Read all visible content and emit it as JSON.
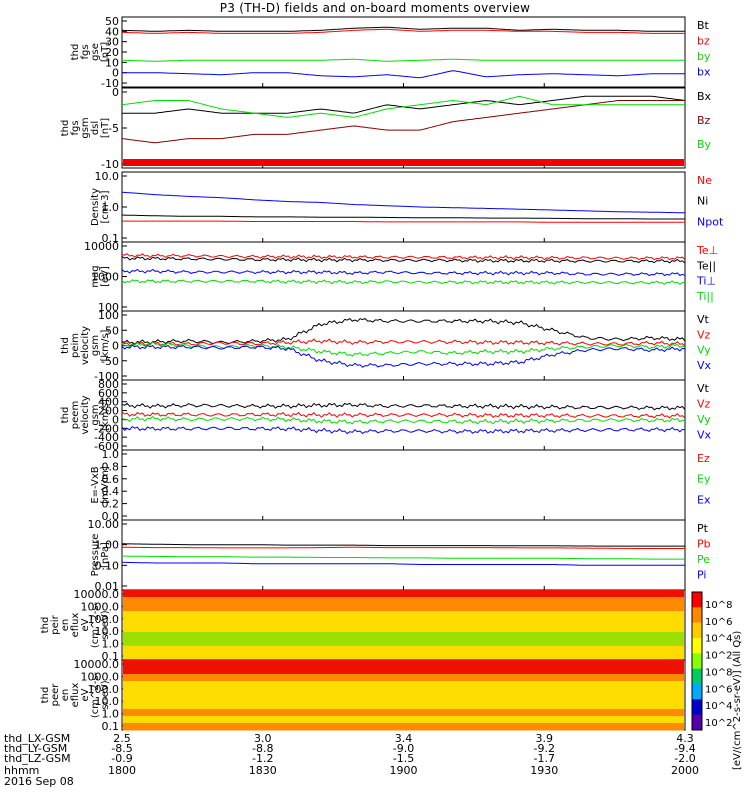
{
  "title": "P3 (TH-D) fields and on-board moments overview",
  "chart_data": [
    {
      "type": "line",
      "panel": 1,
      "ylabel": [
        "thd",
        "fgs",
        "gse",
        "[nT]"
      ],
      "yticks": [
        "50",
        "40",
        "30",
        "20",
        "10",
        "0",
        "-10"
      ],
      "ylim": [
        -10,
        50
      ],
      "series": [
        {
          "name": "Bt",
          "color": "#000000",
          "values": [
            41,
            40,
            41,
            40,
            40,
            40,
            41,
            43,
            44,
            42,
            43,
            43,
            41,
            42,
            41,
            41,
            40,
            40
          ]
        },
        {
          "name": "bz",
          "color": "#ff0000",
          "values": [
            39,
            38,
            39,
            38,
            38,
            38,
            39,
            41,
            42,
            40,
            41,
            41,
            40,
            40,
            39,
            39,
            38,
            38
          ]
        },
        {
          "name": "by",
          "color": "#00dd00",
          "values": [
            12,
            11,
            12,
            12,
            12,
            12,
            12,
            13,
            11,
            12,
            13,
            12,
            12,
            12,
            12,
            12,
            12,
            12
          ]
        },
        {
          "name": "bx",
          "color": "#0000ff",
          "values": [
            0,
            0,
            -1,
            -2,
            0,
            0,
            -3,
            -4,
            -2,
            -5,
            2,
            -4,
            -2,
            -1,
            -2,
            -3,
            -1,
            -1
          ]
        }
      ]
    },
    {
      "type": "line",
      "panel": 2,
      "ylabel": [
        "thd",
        "fgs",
        "gsm",
        "dsl",
        "[nT]"
      ],
      "yticks": [
        "0",
        "-5",
        "-10"
      ],
      "ylim": [
        -14,
        3
      ],
      "series": [
        {
          "name": "Bx",
          "color": "#000000",
          "values": [
            -2,
            -2,
            -1,
            -2,
            -2,
            -2,
            -1,
            -2,
            0,
            -1,
            0,
            1,
            0,
            1,
            2,
            2,
            2,
            1
          ]
        },
        {
          "name": "Bz",
          "color": "#880000",
          "values": [
            -8,
            -9,
            -8,
            -8,
            -7,
            -7,
            -6,
            -5,
            -6,
            -6,
            -4,
            -3,
            -2,
            -1,
            0,
            1,
            1,
            1
          ]
        },
        {
          "name": "By",
          "color": "#00dd00",
          "values": [
            0,
            1,
            1,
            -1,
            -2,
            -3,
            -2,
            -3,
            -1,
            0,
            1,
            0,
            2,
            0,
            0,
            0,
            0,
            0
          ]
        }
      ]
    },
    {
      "type": "line",
      "panel": 3,
      "ylabel": [
        "Density",
        "[cm-3]"
      ],
      "yticks": [
        "10.0",
        "1.0",
        "0.1"
      ],
      "ylim": [
        0.1,
        10
      ],
      "scale": "log",
      "series": [
        {
          "name": "Ne",
          "color": "#ff0000",
          "values": [
            0.35,
            0.35,
            0.35,
            0.35,
            0.34,
            0.34,
            0.34,
            0.34,
            0.33,
            0.33,
            0.33,
            0.33,
            0.33,
            0.32,
            0.32,
            0.32,
            0.32,
            0.32
          ]
        },
        {
          "name": "Ni",
          "color": "#000000",
          "values": [
            0.55,
            0.52,
            0.5,
            0.5,
            0.48,
            0.48,
            0.47,
            0.47,
            0.46,
            0.45,
            0.45,
            0.44,
            0.44,
            0.43,
            0.42,
            0.42,
            0.41,
            0.41
          ]
        },
        {
          "name": "Npot",
          "color": "#0000ff",
          "values": [
            3.0,
            2.5,
            2.2,
            2.0,
            1.7,
            1.5,
            1.4,
            1.2,
            1.1,
            1.0,
            0.95,
            0.9,
            0.85,
            0.8,
            0.75,
            0.7,
            0.68,
            0.65
          ]
        }
      ]
    },
    {
      "type": "line",
      "panel": 4,
      "ylabel": [
        "mag",
        "[eV]"
      ],
      "yticks": [
        "10000",
        "1000",
        "100"
      ],
      "ylim": [
        100,
        10000
      ],
      "scale": "log",
      "series": [
        {
          "name": "Te⊥",
          "color": "#ff0000",
          "values": [
            5000,
            4800,
            4800,
            4600,
            4500,
            4500,
            4400,
            4400,
            4300,
            4300,
            4200,
            4200,
            4200,
            4100,
            4100,
            4000,
            4000,
            4000
          ]
        },
        {
          "name": "Te||",
          "color": "#000000",
          "values": [
            4000,
            3900,
            3800,
            3700,
            3600,
            3600,
            3500,
            3500,
            3400,
            3400,
            3400,
            3300,
            3300,
            3300,
            3200,
            3200,
            3200,
            3200
          ]
        },
        {
          "name": "Ti⊥",
          "color": "#0000ff",
          "values": [
            1500,
            1500,
            1400,
            1400,
            1400,
            1400,
            1400,
            1300,
            1400,
            1300,
            1300,
            1300,
            1300,
            1300,
            1200,
            1200,
            1200,
            1200
          ]
        },
        {
          "name": "Ti||",
          "color": "#00dd00",
          "values": [
            700,
            700,
            700,
            700,
            700,
            680,
            680,
            650,
            680,
            650,
            650,
            650,
            650,
            640,
            640,
            630,
            630,
            630
          ]
        }
      ]
    },
    {
      "type": "line",
      "panel": 5,
      "ylabel": [
        "thd",
        "peim",
        "velocity",
        "gsm",
        "[km/s]"
      ],
      "yticks": [
        "100",
        "50",
        "0",
        "-50",
        "-100"
      ],
      "ylim": [
        -100,
        100
      ],
      "series": [
        {
          "name": "Vt",
          "color": "#000000",
          "values": [
            10,
            12,
            15,
            10,
            14,
            20,
            70,
            85,
            80,
            80,
            80,
            80,
            75,
            50,
            25,
            20,
            25,
            20
          ]
        },
        {
          "name": "Vz",
          "color": "#ff0000",
          "values": [
            5,
            6,
            5,
            8,
            6,
            10,
            15,
            10,
            12,
            12,
            12,
            10,
            10,
            8,
            6,
            5,
            8,
            5
          ]
        },
        {
          "name": "Vy",
          "color": "#00dd00",
          "values": [
            0,
            5,
            0,
            -5,
            0,
            -5,
            -20,
            -30,
            -25,
            -20,
            -25,
            -20,
            -20,
            -10,
            -5,
            0,
            -5,
            0
          ]
        },
        {
          "name": "Vx",
          "color": "#0000ff",
          "values": [
            -5,
            -5,
            -5,
            -8,
            -5,
            -10,
            -50,
            -65,
            -65,
            -60,
            -60,
            -60,
            -55,
            -30,
            -15,
            -10,
            -15,
            -10
          ]
        }
      ]
    },
    {
      "type": "line",
      "panel": 6,
      "ylabel": [
        "thd",
        "peem",
        "velocity",
        "gsm",
        "[km/s]"
      ],
      "yticks": [
        "800",
        "600",
        "400",
        "200",
        "0",
        "-200",
        "-400",
        "-600"
      ],
      "ylim": [
        -600,
        800
      ],
      "series": [
        {
          "name": "Vt",
          "color": "#000000",
          "values": [
            320,
            300,
            320,
            310,
            300,
            300,
            320,
            330,
            300,
            310,
            300,
            300,
            290,
            280,
            270,
            270,
            260,
            260
          ]
        },
        {
          "name": "Vz",
          "color": "#ff0000",
          "values": [
            120,
            110,
            110,
            100,
            110,
            110,
            100,
            100,
            100,
            100,
            100,
            90,
            90,
            90,
            80,
            80,
            80,
            80
          ]
        },
        {
          "name": "Vy",
          "color": "#00dd00",
          "values": [
            0,
            20,
            0,
            10,
            10,
            0,
            -40,
            -60,
            -40,
            -40,
            -50,
            -50,
            -40,
            -30,
            -20,
            -10,
            -20,
            -10
          ]
        },
        {
          "name": "Vx",
          "color": "#0000ff",
          "values": [
            -200,
            -210,
            -210,
            -200,
            -210,
            -210,
            -250,
            -280,
            -260,
            -260,
            -270,
            -270,
            -260,
            -250,
            -240,
            -230,
            -230,
            -230
          ]
        }
      ]
    },
    {
      "type": "line",
      "panel": 7,
      "ylabel": [
        "E=-VxB",
        "[mV/m]"
      ],
      "yticks": [
        "1.0",
        "0.8",
        "0.6",
        "0.4",
        "0.2",
        "0.0"
      ],
      "ylim": [
        0,
        1
      ],
      "series": [
        {
          "name": "Ez",
          "color": "#ff0000",
          "values": []
        },
        {
          "name": "Ey",
          "color": "#00dd00",
          "values": []
        },
        {
          "name": "Ex",
          "color": "#0000ff",
          "values": []
        }
      ]
    },
    {
      "type": "line",
      "panel": 8,
      "ylabel": [
        "Pressure",
        "[nPa]"
      ],
      "yticks": [
        "10.00",
        "1.00",
        "0.10",
        "0.01"
      ],
      "ylim": [
        0.01,
        10
      ],
      "scale": "log",
      "series": [
        {
          "name": "Pt",
          "color": "#000000",
          "values": [
            1.1,
            1.05,
            1.0,
            1.0,
            1.0,
            0.95,
            0.95,
            0.95,
            0.9,
            0.9,
            0.9,
            0.9,
            0.88,
            0.88,
            0.86,
            0.85,
            0.85,
            0.85
          ]
        },
        {
          "name": "Pb",
          "color": "#ff0000",
          "values": [
            0.75,
            0.72,
            0.72,
            0.7,
            0.7,
            0.7,
            0.72,
            0.75,
            0.72,
            0.72,
            0.72,
            0.72,
            0.7,
            0.7,
            0.68,
            0.66,
            0.65,
            0.65
          ]
        },
        {
          "name": "Pe",
          "color": "#00dd00",
          "values": [
            0.28,
            0.27,
            0.26,
            0.26,
            0.25,
            0.25,
            0.24,
            0.24,
            0.23,
            0.23,
            0.22,
            0.22,
            0.22,
            0.22,
            0.21,
            0.21,
            0.2,
            0.2
          ]
        },
        {
          "name": "Pi",
          "color": "#0000ff",
          "values": [
            0.14,
            0.13,
            0.13,
            0.13,
            0.12,
            0.12,
            0.12,
            0.12,
            0.12,
            0.11,
            0.11,
            0.11,
            0.11,
            0.11,
            0.1,
            0.1,
            0.1,
            0.1
          ]
        }
      ]
    },
    {
      "type": "heatmap",
      "panel": 9,
      "ylabel": [
        "thd",
        "peir",
        "en",
        "eflux",
        "eV",
        "(cm^2-s-",
        "sr-eV)"
      ],
      "yticks": [
        "10000.0",
        "1000.0",
        "100.0",
        "10.0",
        "1.0",
        "0.1"
      ],
      "rows": [
        "red",
        "orange",
        "orange",
        "yellow",
        "yellow",
        "yellow",
        "green",
        "green",
        "yellow",
        "yellow"
      ]
    },
    {
      "type": "heatmap",
      "panel": 10,
      "ylabel": [
        "thd",
        "peer",
        "en",
        "eflux",
        "eV",
        "(cm^2-s-",
        "sr-eV)"
      ],
      "yticks": [
        "10000.0",
        "1000.0",
        "100.0",
        "10.0",
        "1.0",
        "0.1"
      ],
      "rows": [
        "red",
        "red",
        "orange",
        "yellow",
        "yellow",
        "yellow",
        "yellow",
        "orange",
        "yellow",
        "orange"
      ]
    }
  ],
  "colorbar": {
    "ticks": [
      "10^8",
      "10^6",
      "10^4",
      "10^2",
      "10^8",
      "10^6",
      "10^4",
      "10^2"
    ],
    "label": "[eV/(cm^2-s-sr-eV)]  (All Qs)",
    "colors": [
      "#ff0000",
      "#ff8800",
      "#ffcc00",
      "#ffff00",
      "#88ff00",
      "#00cc66",
      "#00aaff",
      "#0000cc",
      "#5500aa"
    ]
  },
  "x_axis": {
    "ticks": [
      {
        "lx": "2.5",
        "ly": "-8.5",
        "lz": "-0.9",
        "hhmm": "1800"
      },
      {
        "lx": "3.0",
        "ly": "-8.8",
        "lz": "-1.2",
        "hhmm": "1830"
      },
      {
        "lx": "3.4",
        "ly": "-9.0",
        "lz": "-1.5",
        "hhmm": "1900"
      },
      {
        "lx": "3.9",
        "ly": "-9.2",
        "lz": "-1.7",
        "hhmm": "1930"
      },
      {
        "lx": "4.3",
        "ly": "-9.4",
        "lz": "-2.0",
        "hhmm": "2000"
      }
    ],
    "row_labels": [
      "thd_LX-GSM",
      "thd_LY-GSM",
      "thd_LZ-GSM",
      "hhmm"
    ],
    "date": "2016 Sep 08"
  }
}
